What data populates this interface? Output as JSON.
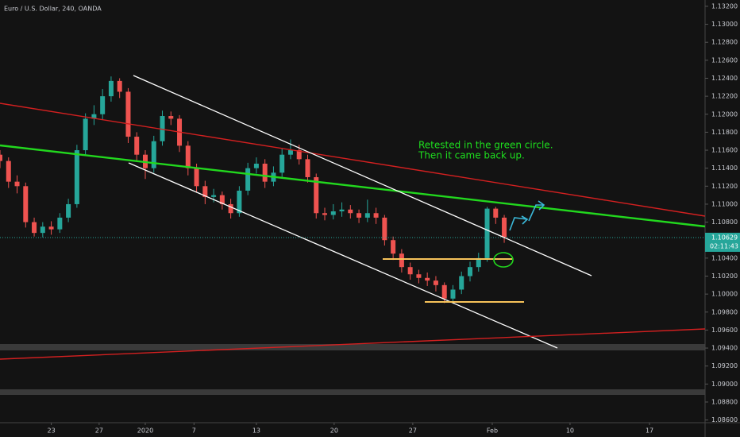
{
  "chart_data": {
    "type": "candlestick",
    "title": "Euro / U.S. Dollar, 240, OANDA",
    "annotations": [
      "Retested in the green circle.",
      "Then it came back up."
    ],
    "last_price": 1.10629,
    "countdown": "02:11:43",
    "up_color": "#26a69a",
    "down_color": "#ef5350",
    "grid": false,
    "x": [
      0,
      1,
      2,
      3,
      4,
      5,
      6,
      7,
      8,
      9,
      10,
      11,
      12,
      13,
      14,
      15,
      16,
      17,
      18,
      19,
      20,
      21,
      22,
      23,
      24,
      25,
      26,
      27,
      28,
      29,
      30,
      31,
      32,
      33,
      34,
      35,
      36,
      37,
      38,
      39,
      40,
      41,
      42,
      43,
      44,
      45,
      46,
      47,
      48,
      49,
      50,
      51,
      52,
      53,
      54,
      55,
      56,
      57,
      58,
      59
    ],
    "open": [
      1.1155,
      1.1148,
      1.1125,
      1.112,
      1.108,
      1.1068,
      1.1075,
      1.1072,
      1.1085,
      1.11,
      1.116,
      1.1195,
      1.12,
      1.122,
      1.1237,
      1.1225,
      1.1175,
      1.1155,
      1.114,
      1.117,
      1.1198,
      1.1195,
      1.1165,
      1.114,
      1.112,
      1.1108,
      1.111,
      1.11,
      1.109,
      1.1115,
      1.114,
      1.1145,
      1.1125,
      1.1135,
      1.1155,
      1.116,
      1.115,
      1.113,
      1.109,
      1.1088,
      1.1092,
      1.1094,
      1.109,
      1.1085,
      1.109,
      1.1085,
      1.106,
      1.1045,
      1.103,
      1.1022,
      1.1018,
      1.1015,
      1.101,
      1.0995,
      1.1005,
      1.102,
      1.103,
      1.104,
      1.1095,
      1.1085
    ],
    "high": [
      1.116,
      1.1152,
      1.1132,
      1.1124,
      1.1085,
      1.108,
      1.1081,
      1.109,
      1.1106,
      1.1166,
      1.1201,
      1.121,
      1.1228,
      1.1242,
      1.124,
      1.1229,
      1.118,
      1.116,
      1.1176,
      1.1204,
      1.1203,
      1.1199,
      1.117,
      1.1145,
      1.1126,
      1.1117,
      1.1114,
      1.1106,
      1.112,
      1.1146,
      1.1152,
      1.115,
      1.1142,
      1.1162,
      1.1172,
      1.1166,
      1.1155,
      1.1134,
      1.1096,
      1.11,
      1.1102,
      1.1099,
      1.1094,
      1.1105,
      1.1096,
      1.1088,
      1.1064,
      1.105,
      1.1035,
      1.1027,
      1.1024,
      1.102,
      1.1013,
      1.101,
      1.1025,
      1.1036,
      1.1046,
      1.1097,
      1.1097,
      1.1088
    ],
    "low": [
      1.114,
      1.1118,
      1.1112,
      1.1074,
      1.1064,
      1.1063,
      1.1066,
      1.1068,
      1.108,
      1.1096,
      1.1154,
      1.1188,
      1.1194,
      1.1214,
      1.1218,
      1.1168,
      1.1148,
      1.1128,
      1.1135,
      1.1165,
      1.1188,
      1.1158,
      1.1132,
      1.1113,
      1.11,
      1.1102,
      1.1094,
      1.1084,
      1.1086,
      1.111,
      1.1134,
      1.1118,
      1.112,
      1.113,
      1.115,
      1.1144,
      1.1124,
      1.1084,
      1.1082,
      1.1083,
      1.1086,
      1.1084,
      1.1079,
      1.108,
      1.1078,
      1.1054,
      1.1038,
      1.1024,
      1.1016,
      1.1012,
      1.1009,
      1.1003,
      1.099,
      1.0991,
      1.1,
      1.1014,
      1.1025,
      1.1036,
      1.1078,
      1.1057
    ],
    "close": [
      1.1148,
      1.1125,
      1.112,
      1.108,
      1.1068,
      1.1075,
      1.1072,
      1.1085,
      1.11,
      1.116,
      1.1195,
      1.12,
      1.122,
      1.1237,
      1.1225,
      1.1175,
      1.1155,
      1.114,
      1.117,
      1.1198,
      1.1195,
      1.1165,
      1.114,
      1.112,
      1.1108,
      1.111,
      1.11,
      1.109,
      1.1115,
      1.114,
      1.1145,
      1.1125,
      1.1135,
      1.1155,
      1.116,
      1.115,
      1.113,
      1.109,
      1.1088,
      1.1092,
      1.1094,
      1.109,
      1.1085,
      1.109,
      1.1085,
      1.106,
      1.1045,
      1.103,
      1.1022,
      1.1018,
      1.1015,
      1.101,
      1.0995,
      1.1005,
      1.102,
      1.103,
      1.104,
      1.1095,
      1.1085,
      1.1063
    ],
    "xlim": [
      0,
      82.5
    ],
    "xticks": [
      {
        "value": 6,
        "label": "23"
      },
      {
        "value": 11.6,
        "label": "27"
      },
      {
        "value": 17,
        "label": "2020"
      },
      {
        "value": 22.7,
        "label": "7"
      },
      {
        "value": 30,
        "label": "13"
      },
      {
        "value": 39.1,
        "label": "20"
      },
      {
        "value": 48.3,
        "label": "27"
      },
      {
        "value": 57.6,
        "label": "Feb"
      },
      {
        "value": 66.7,
        "label": "10"
      },
      {
        "value": 76,
        "label": "17"
      }
    ],
    "ylim": [
      1.0857,
      1.1327
    ],
    "yticks": [
      {
        "value": 1.086,
        "label": "1.08600"
      },
      {
        "value": 1.088,
        "label": "1.08800"
      },
      {
        "value": 1.09,
        "label": "1.09000"
      },
      {
        "value": 1.092,
        "label": "1.09200"
      },
      {
        "value": 1.094,
        "label": "1.09400"
      },
      {
        "value": 1.096,
        "label": "1.09600"
      },
      {
        "value": 1.098,
        "label": "1.09800"
      },
      {
        "value": 1.1,
        "label": "1.10000"
      },
      {
        "value": 1.102,
        "label": "1.10200"
      },
      {
        "value": 1.104,
        "label": "1.10400"
      },
      {
        "value": 1.106,
        "label": "1.10600"
      },
      {
        "value": 1.108,
        "label": "1.10800"
      },
      {
        "value": 1.11,
        "label": "1.11000"
      },
      {
        "value": 1.112,
        "label": "1.11200"
      },
      {
        "value": 1.114,
        "label": "1.11400"
      },
      {
        "value": 1.116,
        "label": "1.11600"
      },
      {
        "value": 1.118,
        "label": "1.11800"
      },
      {
        "value": 1.12,
        "label": "1.12000"
      },
      {
        "value": 1.122,
        "label": "1.12200"
      },
      {
        "value": 1.124,
        "label": "1.12400"
      },
      {
        "value": 1.126,
        "label": "1.12600"
      },
      {
        "value": 1.128,
        "label": "1.12800"
      },
      {
        "value": 1.13,
        "label": "1.13000"
      },
      {
        "value": 1.132,
        "label": "1.13200"
      }
    ]
  }
}
